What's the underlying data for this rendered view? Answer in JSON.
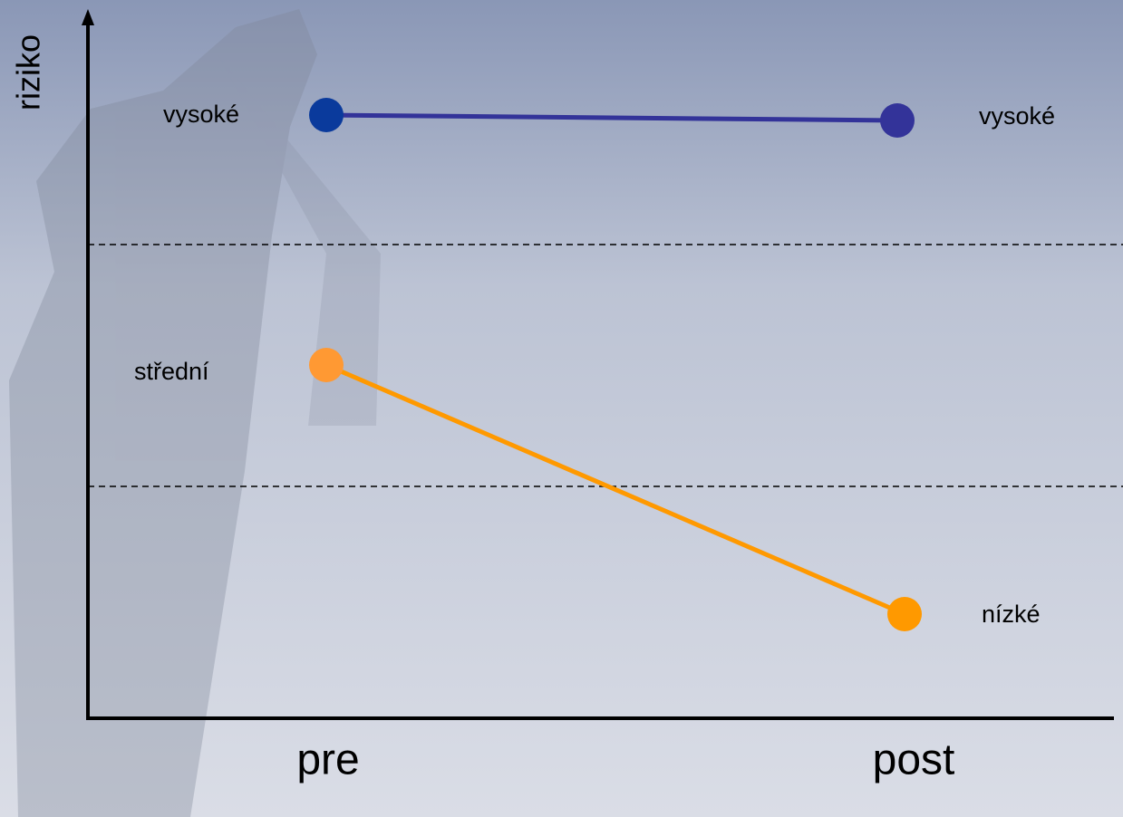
{
  "y_axis_label": "riziko",
  "x_labels": [
    "pre",
    "post"
  ],
  "lines": [
    {
      "start_label": "vysoké",
      "end_label": "vysoké"
    },
    {
      "start_label": "střední",
      "end_label": "nízké"
    }
  ]
}
